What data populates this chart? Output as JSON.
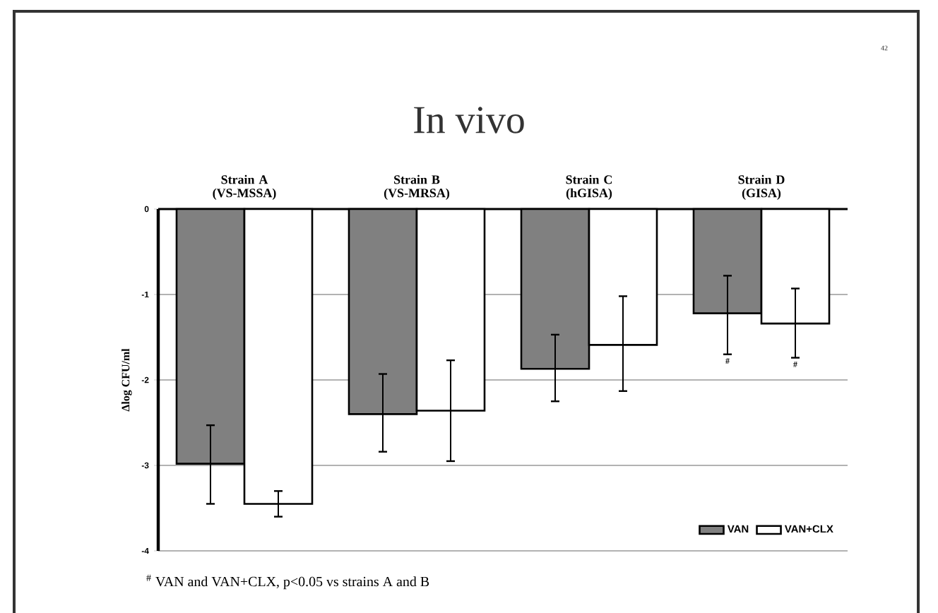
{
  "chart_data": {
    "type": "bar",
    "title": "In vivo",
    "ylabel": "Δlog CFU/ml",
    "categories": [
      "Strain A (VS-MSSA)",
      "Strain B (VS-MRSA)",
      "Strain C (hGISA)",
      "Strain D (GISA)"
    ],
    "series": [
      {
        "name": "VAN",
        "color": "#808080",
        "values": [
          -2.98,
          -2.4,
          -1.87,
          -1.22
        ],
        "errors": [
          [
            -3.45,
            -2.53
          ],
          [
            -2.84,
            -1.93
          ],
          [
            -2.25,
            -1.47
          ],
          [
            -1.7,
            -0.78
          ]
        ]
      },
      {
        "name": "VAN+CLX",
        "color": "#ffffff",
        "values": [
          -3.45,
          -2.36,
          -1.59,
          -1.34
        ],
        "errors": [
          [
            -3.6,
            -3.3
          ],
          [
            -2.95,
            -1.77
          ],
          [
            -2.13,
            -1.02
          ],
          [
            -1.74,
            -0.93
          ]
        ]
      }
    ],
    "ylim": [
      -4,
      0
    ],
    "yticks": [
      0,
      -1,
      -2,
      -3,
      -4
    ],
    "grid": "y",
    "legend": "bottom right",
    "annotations": [
      "#",
      "#",
      "$^{#}$ VAN and VAN+CLX, p<0.05 vs strains A and B",
      "42"
    ]
  }
}
